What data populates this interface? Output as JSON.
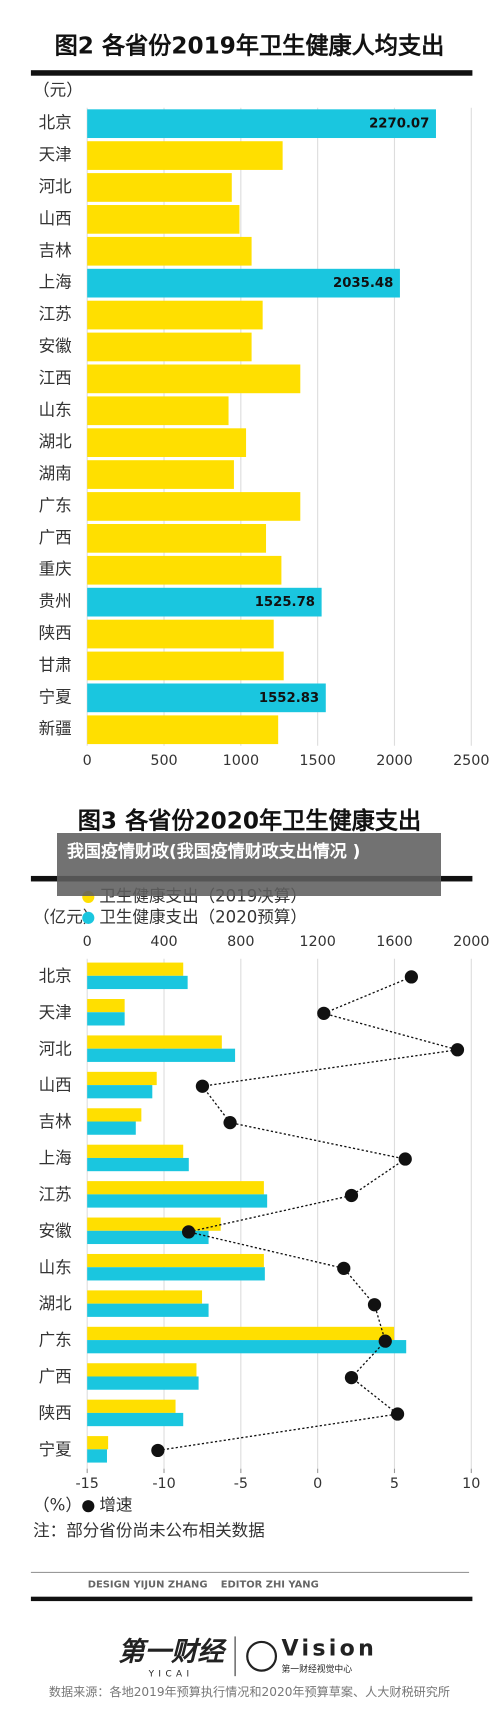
{
  "chart_data": [
    {
      "type": "bar",
      "orientation": "horizontal",
      "title": "图2 各省份2019年卫生健康人均支出",
      "unit": "（元）",
      "categories": [
        "北京",
        "天津",
        "河北",
        "山西",
        "吉林",
        "上海",
        "江苏",
        "安徽",
        "江西",
        "山东",
        "湖北",
        "湖南",
        "广东",
        "广西",
        "重庆",
        "贵州",
        "陕西",
        "甘肃",
        "宁夏",
        "新疆"
      ],
      "values": [
        2270.07,
        1272,
        941,
        991,
        1070,
        2035.48,
        1142,
        1070,
        1387,
        920,
        1034,
        955,
        1387,
        1164,
        1264,
        1525.78,
        1214,
        1279,
        1552.83,
        1243
      ],
      "colors": [
        "#1ac6df",
        "#ffdf00",
        "#ffdf00",
        "#ffdf00",
        "#ffdf00",
        "#1ac6df",
        "#ffdf00",
        "#ffdf00",
        "#ffdf00",
        "#ffdf00",
        "#ffdf00",
        "#ffdf00",
        "#ffdf00",
        "#ffdf00",
        "#ffdf00",
        "#1ac6df",
        "#ffdf00",
        "#ffdf00",
        "#1ac6df",
        "#ffdf00"
      ],
      "labeled_color": "#1ac6df",
      "xlim": [
        0,
        2500
      ],
      "xticks": [
        0,
        500,
        1000,
        1500,
        2000,
        2500
      ],
      "grid": true
    },
    {
      "type": "combo",
      "title": "图3 各省份2020年卫生健康支出",
      "unit": "（亿元）",
      "x2_unit": "（%）",
      "note": "注：部分省份尚未公布相关数据",
      "categories": [
        "北京",
        "天津",
        "河北",
        "山西",
        "吉林",
        "上海",
        "江苏",
        "安徽",
        "山东",
        "湖北",
        "广东",
        "广西",
        "陕西",
        "宁夏"
      ],
      "series": [
        {
          "name": "卫生健康支出（2019决算）",
          "color": "#ffdf00",
          "values": [
            500,
            195,
            701,
            362,
            282,
            500,
            920,
            695,
            920,
            598,
            1598,
            569,
            460,
            109
          ]
        },
        {
          "name": "卫生健康支出（2020预算）",
          "color": "#1ac6df",
          "values": [
            523,
            195,
            770,
            339,
            253,
            529,
            937,
            632,
            925,
            632,
            1661,
            580,
            500,
            103
          ]
        },
        {
          "name": "增速",
          "color": "#111111",
          "axis": "x2",
          "values": [
            6.1,
            0.4,
            9.1,
            -7.5,
            -5.7,
            5.7,
            2.2,
            -8.4,
            1.7,
            3.7,
            4.4,
            2.2,
            5.2,
            -10.4
          ]
        }
      ],
      "xlim": [
        0,
        2000
      ],
      "xticks": [
        0,
        400,
        800,
        1200,
        1600,
        2000
      ],
      "x2lim": [
        -15,
        10
      ],
      "x2ticks": [
        -15,
        -10,
        -5,
        0,
        5,
        10
      ],
      "grid": true
    }
  ],
  "page": {
    "overlay": "我国疫情财政(我国疫情财政支出情况 )",
    "design": "DESIGN YIJUN ZHANG",
    "editor": "EDITOR ZHI YANG",
    "logo1": "第一财经",
    "logo1_sub": "YICAI",
    "logo2": "Vision",
    "logo2_sub": "第一财经视觉中心",
    "source": "数据来源：各地2019年预算执行情况和2020年预算草案、人大财税研究所"
  }
}
